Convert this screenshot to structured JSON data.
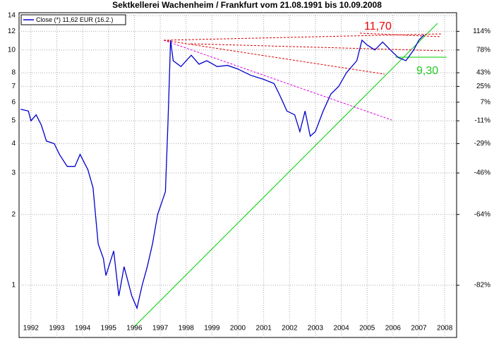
{
  "chart_data": {
    "type": "line",
    "title": "Sektkellerei Wachenheim / Frankfurt vom 21.08.1991 bis 10.09.2008",
    "log_scale": true,
    "grid": true,
    "x": [
      1991.6,
      1991.9,
      1992.0,
      1992.2,
      1992.4,
      1992.6,
      1992.9,
      1993.1,
      1993.4,
      1993.7,
      1993.9,
      1994.2,
      1994.4,
      1994.6,
      1994.8,
      1994.9,
      1995.2,
      1995.4,
      1995.6,
      1995.9,
      1996.1,
      1996.3,
      1996.5,
      1996.7,
      1996.9,
      1997.2,
      1997.3,
      1997.4,
      1997.5,
      1997.8,
      1998.2,
      1998.5,
      1998.8,
      1999.2,
      1999.6,
      2000.0,
      2000.5,
      2001.0,
      2001.4,
      2001.6,
      2001.9,
      2002.2,
      2002.4,
      2002.6,
      2002.8,
      2003.0,
      2003.3,
      2003.6,
      2003.9,
      2004.2,
      2004.6,
      2004.8,
      2005.0,
      2005.3,
      2005.6,
      2005.9,
      2006.2,
      2006.5,
      2006.8,
      2007.0,
      2007.2
    ],
    "series": [
      {
        "name": "Close (*) 11,62 EUR (16.2.)",
        "color": "#0000cc",
        "values": [
          5.6,
          5.5,
          5.0,
          5.3,
          4.8,
          4.1,
          4.0,
          3.6,
          3.2,
          3.2,
          3.6,
          3.1,
          2.6,
          1.5,
          1.3,
          1.1,
          1.4,
          0.9,
          1.2,
          0.9,
          0.8,
          1.0,
          1.2,
          1.5,
          2.0,
          2.5,
          5.0,
          11.0,
          9.0,
          8.5,
          9.5,
          8.7,
          9.0,
          8.5,
          8.6,
          8.3,
          7.8,
          7.5,
          7.2,
          6.5,
          5.5,
          5.3,
          4.5,
          5.5,
          4.3,
          4.5,
          5.5,
          6.5,
          7.0,
          8.0,
          9.0,
          11.0,
          10.5,
          10.0,
          10.8,
          10.0,
          9.3,
          9.0,
          10.0,
          11.0,
          11.6
        ]
      }
    ],
    "xlim": [
      1991.54,
      2008.46
    ],
    "xticks": [
      1992,
      1993,
      1994,
      1995,
      1996,
      1997,
      1998,
      1999,
      2000,
      2001,
      2002,
      2003,
      2004,
      2005,
      2006,
      2007,
      2008
    ],
    "ylim": [
      0.6,
      14.4
    ],
    "yticks": [
      1,
      2,
      3,
      4,
      5,
      6,
      7,
      8,
      10,
      12,
      14
    ],
    "y2ticks": [
      {
        "value": 1,
        "label": "-82%"
      },
      {
        "value": 2,
        "label": "-64%"
      },
      {
        "value": 3,
        "label": "-46%"
      },
      {
        "value": 4,
        "label": "-29%"
      },
      {
        "value": 5,
        "label": "-11%"
      },
      {
        "value": 6,
        "label": "7%"
      },
      {
        "value": 7,
        "label": "25%"
      },
      {
        "value": 8,
        "label": "43%"
      },
      {
        "value": 10,
        "label": "78%"
      },
      {
        "value": 12,
        "label": "114%"
      }
    ],
    "annotations": [
      "11,70",
      "9,30"
    ]
  }
}
